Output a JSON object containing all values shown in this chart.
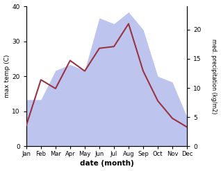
{
  "months": [
    "Jan",
    "Feb",
    "Mar",
    "Apr",
    "May",
    "Jun",
    "Jul",
    "Aug",
    "Sep",
    "Oct",
    "Nov",
    "Dec"
  ],
  "month_positions": [
    0,
    1,
    2,
    3,
    4,
    5,
    6,
    7,
    8,
    9,
    10,
    11
  ],
  "max_temp": [
    6.0,
    19.0,
    16.5,
    24.5,
    21.5,
    28.0,
    28.5,
    35.0,
    21.5,
    13.0,
    8.0,
    5.5
  ],
  "precipitation": [
    8.0,
    8.0,
    13.0,
    14.0,
    13.0,
    22.0,
    21.0,
    23.0,
    20.0,
    12.0,
    11.0,
    5.0
  ],
  "temp_color": "#993344",
  "precip_fill_color": "#bdc5ee",
  "temp_ylim": [
    0,
    40
  ],
  "precip_ylim": [
    0,
    24
  ],
  "left_yticks": [
    0,
    10,
    20,
    30,
    40
  ],
  "right_yticks": [
    0,
    5,
    10,
    15,
    20
  ],
  "ylabel_left": "max temp (C)",
  "ylabel_right": "med. precipitation (kg/m2)",
  "xlabel": "date (month)",
  "bg_color": "#ffffff"
}
